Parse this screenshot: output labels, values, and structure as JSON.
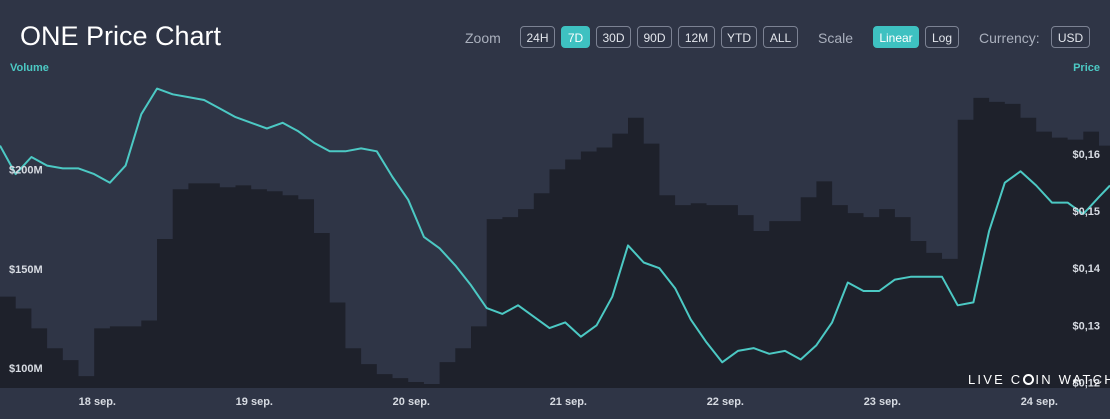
{
  "header": {
    "title": "ONE Price Chart"
  },
  "controls": {
    "zoom_label": "Zoom",
    "zoom_options": [
      "24H",
      "7D",
      "30D",
      "90D",
      "12M",
      "YTD",
      "ALL"
    ],
    "zoom_selected": "7D",
    "scale_label": "Scale",
    "scale_options": [
      "Linear",
      "Log"
    ],
    "scale_selected": "Linear",
    "currency_label": "Currency:",
    "currency_value": "USD"
  },
  "watermark": {
    "text_left": "LIVE C",
    "text_right": "IN WATCH"
  },
  "colors": {
    "background": "#2f3546",
    "accent": "#3ec1c1",
    "price_line": "#4cc9c4",
    "volume_area": "#1e212b"
  },
  "chart_data": {
    "type": "line",
    "volume_axis_label": "Volume",
    "price_axis_label": "Price",
    "x_tick_labels": [
      "18 sep.",
      "19 sep.",
      "20 sep.",
      "21 sep.",
      "22 sep.",
      "23 sep.",
      "24 sep."
    ],
    "volume_tick_labels": [
      "$200M",
      "$150M",
      "$100M"
    ],
    "volume_ticks": [
      200,
      150,
      100
    ],
    "price_tick_labels": [
      "$0,16",
      "$0,15",
      "$0,14",
      "$0,13",
      "$0,12"
    ],
    "price_ticks": [
      0.16,
      0.15,
      0.14,
      0.13,
      0.12
    ],
    "volume_ylim": [
      90,
      245
    ],
    "price_ylim": [
      0.119,
      0.173
    ],
    "x_range": [
      0,
      7.07
    ],
    "series": [
      {
        "name": "Price",
        "x": [
          0,
          0.1,
          0.2,
          0.3,
          0.4,
          0.5,
          0.6,
          0.7,
          0.8,
          0.9,
          1.0,
          1.1,
          1.2,
          1.3,
          1.4,
          1.5,
          1.6,
          1.7,
          1.8,
          1.9,
          2.0,
          2.1,
          2.2,
          2.3,
          2.4,
          2.5,
          2.6,
          2.7,
          2.8,
          2.9,
          3.0,
          3.1,
          3.2,
          3.3,
          3.4,
          3.5,
          3.6,
          3.7,
          3.8,
          3.9,
          4.0,
          4.1,
          4.2,
          4.3,
          4.4,
          4.5,
          4.6,
          4.7,
          4.8,
          4.9,
          5.0,
          5.1,
          5.2,
          5.3,
          5.4,
          5.5,
          5.6,
          5.7,
          5.8,
          5.9,
          6.0,
          6.1,
          6.2,
          6.3,
          6.4,
          6.5,
          6.6,
          6.7,
          6.8,
          6.9,
          7.0,
          7.07
        ],
        "values": [
          0.1615,
          0.1565,
          0.1595,
          0.158,
          0.1575,
          0.1575,
          0.1565,
          0.155,
          0.158,
          0.167,
          0.1715,
          0.1705,
          0.17,
          0.1695,
          0.168,
          0.1665,
          0.1655,
          0.1645,
          0.1655,
          0.164,
          0.162,
          0.1605,
          0.1605,
          0.161,
          0.1605,
          0.156,
          0.152,
          0.1455,
          0.1435,
          0.1405,
          0.137,
          0.133,
          0.132,
          0.1335,
          0.1315,
          0.1295,
          0.1305,
          0.128,
          0.13,
          0.135,
          0.144,
          0.141,
          0.14,
          0.1365,
          0.131,
          0.127,
          0.1235,
          0.1255,
          0.126,
          0.125,
          0.1255,
          0.124,
          0.1265,
          0.1305,
          0.1375,
          0.136,
          0.136,
          0.138,
          0.1385,
          0.1385,
          0.1385,
          0.1335,
          0.134,
          0.1465,
          0.155,
          0.157,
          0.1545,
          0.1515,
          0.1515,
          0.1495,
          0.1525,
          0.1545
        ]
      },
      {
        "name": "Volume",
        "x": [
          0,
          0.1,
          0.2,
          0.3,
          0.4,
          0.5,
          0.6,
          0.7,
          0.8,
          0.9,
          1.0,
          1.1,
          1.2,
          1.3,
          1.4,
          1.5,
          1.6,
          1.7,
          1.8,
          1.9,
          2.0,
          2.1,
          2.2,
          2.3,
          2.4,
          2.5,
          2.6,
          2.7,
          2.8,
          2.9,
          3.0,
          3.1,
          3.2,
          3.3,
          3.4,
          3.5,
          3.6,
          3.7,
          3.8,
          3.9,
          4.0,
          4.1,
          4.2,
          4.3,
          4.4,
          4.5,
          4.6,
          4.7,
          4.8,
          4.9,
          5.0,
          5.1,
          5.2,
          5.3,
          5.4,
          5.5,
          5.6,
          5.7,
          5.8,
          5.9,
          6.0,
          6.1,
          6.2,
          6.3,
          6.4,
          6.5,
          6.6,
          6.7,
          6.8,
          6.9,
          7.0,
          7.07
        ],
        "values": [
          136,
          130,
          120,
          110,
          104,
          96,
          120,
          121,
          121,
          124,
          165,
          190,
          193,
          193,
          191,
          192,
          190,
          189,
          187,
          185,
          168,
          133,
          110,
          102,
          97,
          95,
          93,
          92,
          103,
          110,
          121,
          175,
          176,
          180,
          188,
          200,
          205,
          209,
          211,
          218,
          226,
          213,
          187,
          182,
          183,
          182,
          182,
          177,
          169,
          174,
          174,
          186,
          194,
          182,
          178,
          176,
          180,
          176,
          164,
          158,
          155,
          225,
          236,
          234,
          233,
          226,
          219,
          216,
          215,
          219,
          212,
          212
        ]
      }
    ]
  }
}
